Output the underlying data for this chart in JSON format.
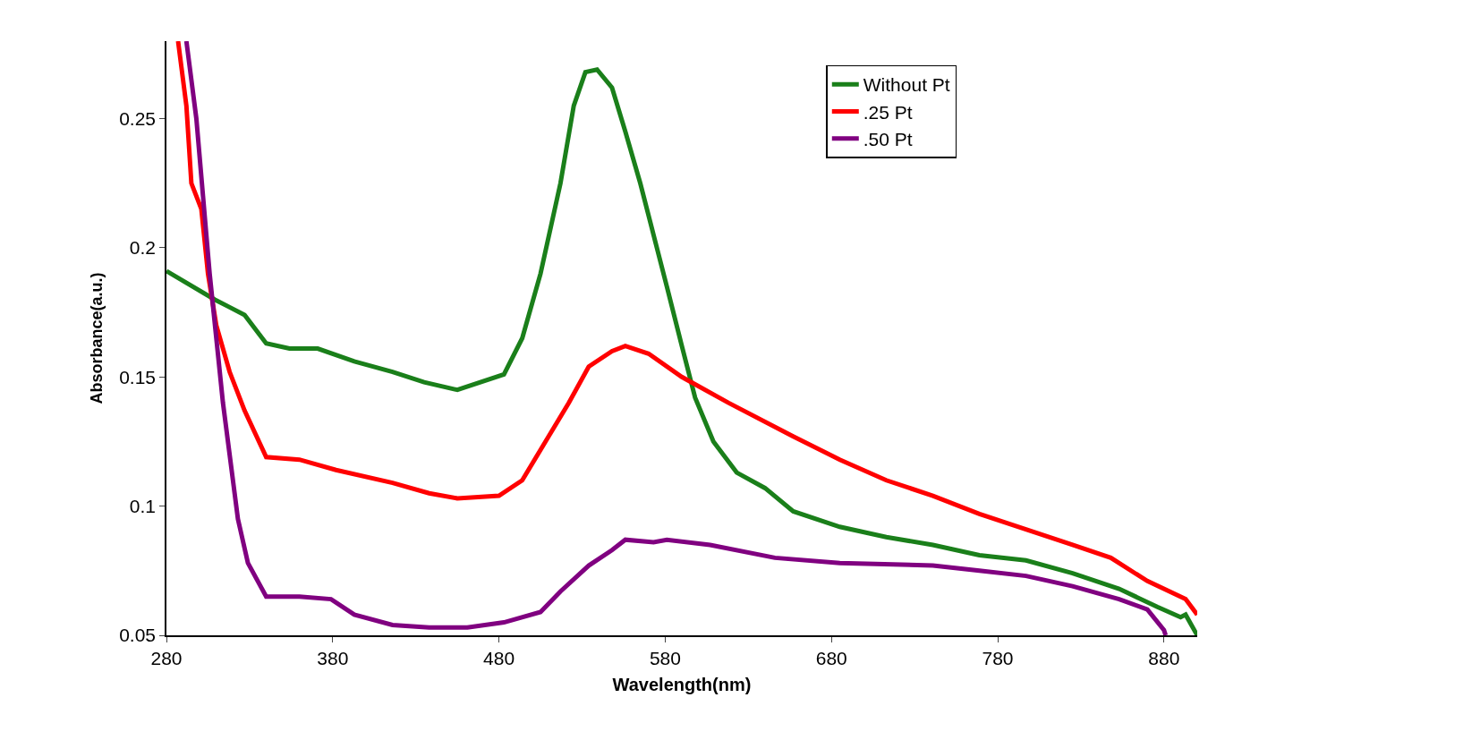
{
  "chart_data": {
    "type": "line",
    "xlabel": "Wavelength(nm)",
    "ylabel": "Absorbance(a.u.)",
    "xlim": [
      280,
      900
    ],
    "xticks": [
      280,
      380,
      480,
      580,
      680,
      780,
      880
    ],
    "ylim": [
      0.05,
      0.28
    ],
    "yticks": [
      {
        "value": 0.05,
        "label": "0.05"
      },
      {
        "value": 0.1,
        "label": "0.1"
      },
      {
        "value": 0.15,
        "label": "0.15"
      },
      {
        "value": 0.2,
        "label": "0.2"
      },
      {
        "value": 0.25,
        "label": "0.25"
      }
    ],
    "grid": false,
    "legend": "top right",
    "marker": "none",
    "line_style": "solid",
    "series": [
      {
        "name": "Without Pt",
        "color": "#1a7f1a",
        "x": [
          280,
          309,
          327,
          340,
          354,
          371,
          393,
          416,
          435,
          455,
          483,
          494,
          505,
          517,
          525,
          532,
          539,
          548,
          556,
          565,
          573,
          581,
          590,
          598,
          609,
          623,
          640,
          657,
          685,
          713,
          741,
          769,
          797,
          825,
          853,
          876,
          890,
          893,
          900
        ],
        "values": [
          0.191,
          0.18,
          0.174,
          0.163,
          0.161,
          0.161,
          0.156,
          0.152,
          0.148,
          0.145,
          0.151,
          0.165,
          0.19,
          0.225,
          0.255,
          0.268,
          0.269,
          0.262,
          0.245,
          0.225,
          0.205,
          0.185,
          0.162,
          0.142,
          0.125,
          0.113,
          0.107,
          0.098,
          0.092,
          0.088,
          0.085,
          0.081,
          0.079,
          0.074,
          0.068,
          0.061,
          0.057,
          0.058,
          0.05
        ]
      },
      {
        "name": ".25 Pt",
        "color": "#ff0000",
        "x": [
          287,
          292,
          295,
          301,
          305,
          310,
          318,
          327,
          340,
          360,
          382,
          416,
          438,
          455,
          480,
          494,
          508,
          522,
          534,
          548,
          556,
          570,
          590,
          618,
          657,
          685,
          713,
          741,
          769,
          797,
          825,
          848,
          870,
          893,
          900
        ],
        "values": [
          0.28,
          0.255,
          0.225,
          0.215,
          0.19,
          0.17,
          0.152,
          0.137,
          0.119,
          0.118,
          0.114,
          0.109,
          0.105,
          0.103,
          0.104,
          0.11,
          0.125,
          0.14,
          0.154,
          0.16,
          0.162,
          0.159,
          0.15,
          0.14,
          0.127,
          0.118,
          0.11,
          0.104,
          0.097,
          0.091,
          0.085,
          0.08,
          0.071,
          0.064,
          0.058
        ]
      },
      {
        "name": ".50 Pt",
        "color": "#800080",
        "x": [
          292,
          298,
          302,
          306,
          310,
          314,
          318,
          323,
          329,
          340,
          360,
          379,
          393,
          416,
          438,
          461,
          483,
          505,
          517,
          534,
          548,
          556,
          573,
          581,
          607,
          646,
          685,
          741,
          769,
          797,
          825,
          853,
          870,
          880,
          881
        ],
        "values": [
          0.28,
          0.25,
          0.22,
          0.19,
          0.165,
          0.14,
          0.12,
          0.095,
          0.078,
          0.065,
          0.065,
          0.064,
          0.058,
          0.054,
          0.053,
          0.053,
          0.055,
          0.059,
          0.067,
          0.077,
          0.083,
          0.087,
          0.086,
          0.087,
          0.085,
          0.08,
          0.078,
          0.077,
          0.075,
          0.073,
          0.069,
          0.064,
          0.06,
          0.052,
          0.05
        ]
      }
    ]
  }
}
